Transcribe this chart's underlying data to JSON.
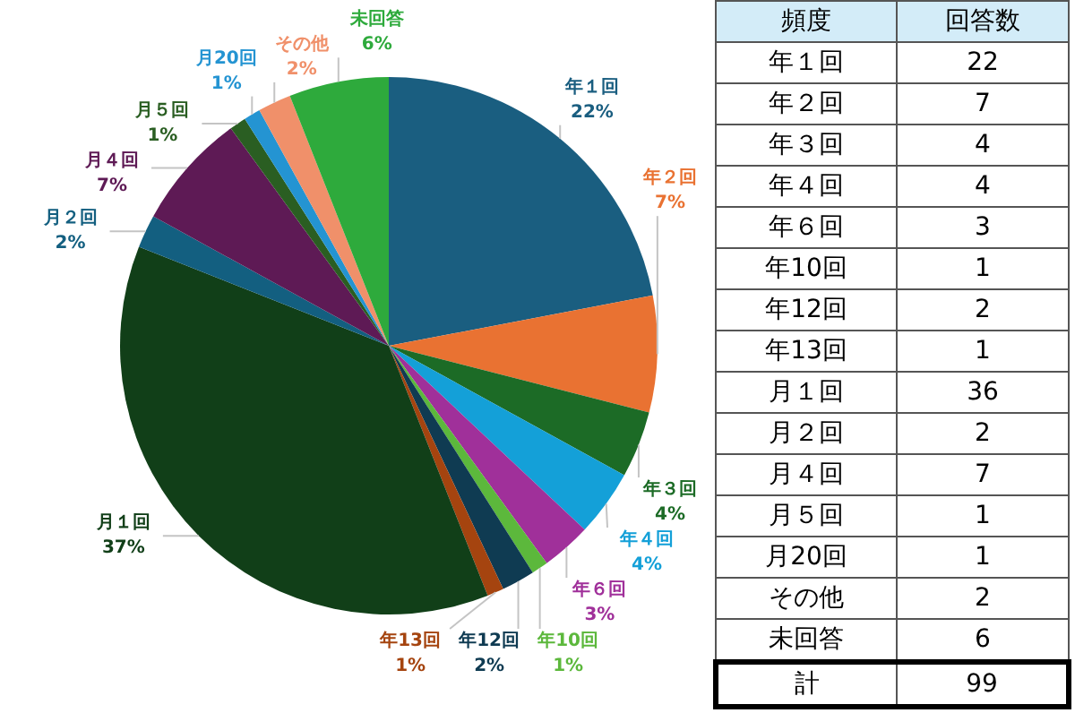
{
  "chart_data": [
    {
      "type": "pie",
      "categories": [
        "年１回",
        "年２回",
        "年３回",
        "年４回",
        "年６回",
        "年10回",
        "年12回",
        "年13回",
        "月１回",
        "月２回",
        "月４回",
        "月５回",
        "月20回",
        "その他",
        "未回答"
      ],
      "values": [
        22,
        7,
        4,
        4,
        3,
        1,
        2,
        1,
        37,
        2,
        7,
        1,
        1,
        2,
        6
      ],
      "value_labels": [
        "22%",
        "7%",
        "4%",
        "4%",
        "3%",
        "1%",
        "2%",
        "1%",
        "37%",
        "2%",
        "7%",
        "1%",
        "1%",
        "2%",
        "6%"
      ],
      "colors": [
        "#1a5e80",
        "#e97232",
        "#1c6b26",
        "#14a0d8",
        "#a0309a",
        "#5cb83c",
        "#0f3b52",
        "#a5440f",
        "#113f18",
        "#135f80",
        "#5e1a55",
        "#2a5e22",
        "#2494d2",
        "#f0906a",
        "#2eaa3c"
      ],
      "legend": false
    },
    {
      "type": "other",
      "categories": [
        "年１回",
        "年２回",
        "年３回",
        "年４回",
        "年６回",
        "年10回",
        "年12回",
        "年13回",
        "月１回",
        "月２回",
        "月４回",
        "月５回",
        "月20回",
        "その他",
        "未回答"
      ],
      "values": [
        22,
        7,
        4,
        4,
        3,
        1,
        2,
        1,
        36,
        2,
        7,
        1,
        1,
        2,
        6
      ],
      "data_labels": true,
      "annotations": [
        "頻度",
        "回答数",
        "計"
      ],
      "totals": [
        "99"
      ]
    }
  ]
}
